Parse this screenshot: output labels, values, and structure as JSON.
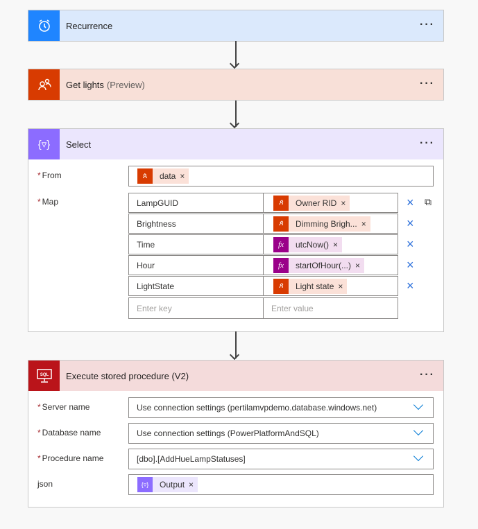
{
  "colors": {
    "recurrence": "#1f85ff",
    "get_lights": "#d83b01",
    "select": "#8c6cff",
    "sql": "#ba141a",
    "fx": "#9a0089",
    "link": "#0078d4"
  },
  "recurrence": {
    "title": "Recurrence",
    "icon": "alarm-clock-icon"
  },
  "get_lights": {
    "title": "Get lights",
    "tag": "(Preview)",
    "icon": "people-icon"
  },
  "select": {
    "title": "Select",
    "icon": "select-filter-icon",
    "from_label": "From",
    "from_token": "data",
    "map_label": "Map",
    "rows": [
      {
        "key": "LampGUID",
        "value": "Owner RID",
        "type": "dynamic"
      },
      {
        "key": "Brightness",
        "value": "Dimming Brigh...",
        "type": "dynamic"
      },
      {
        "key": "Time",
        "value": "utcNow()",
        "type": "expression"
      },
      {
        "key": "Hour",
        "value": "startOfHour(...)",
        "type": "expression"
      },
      {
        "key": "LightState",
        "value": "Light state",
        "type": "dynamic"
      }
    ],
    "key_placeholder": "Enter key",
    "value_placeholder": "Enter value"
  },
  "sql": {
    "title": "Execute stored procedure (V2)",
    "icon_text": "SQL",
    "server_label": "Server name",
    "server_value": "Use connection settings (pertilamvpdemo.database.windows.net)",
    "db_label": "Database name",
    "db_value": "Use connection settings (PowerPlatformAndSQL)",
    "proc_label": "Procedure name",
    "proc_value": "[dbo].[AddHueLampStatuses]",
    "json_label": "json",
    "json_token": "Output"
  },
  "more": "···",
  "remove": "×",
  "required": "*",
  "fx": "fx"
}
